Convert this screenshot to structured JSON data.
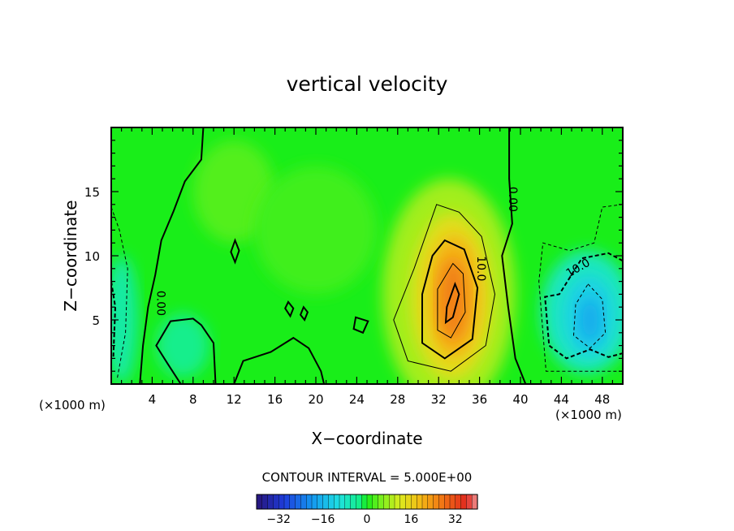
{
  "chart_data": {
    "type": "heatmap",
    "title": "vertical velocity",
    "xlabel": "X−coordinate",
    "ylabel": "Z−coordinate",
    "x_unit_left": "(×1000 m)",
    "x_unit_right": "(×1000 m)",
    "xlim": [
      0,
      50
    ],
    "ylim": [
      0,
      20
    ],
    "x_ticks": [
      4,
      8,
      12,
      16,
      20,
      24,
      28,
      32,
      36,
      40,
      44,
      48
    ],
    "x_tick_labels": [
      "4",
      "8",
      "12",
      "16",
      "20",
      "24",
      "28",
      "32",
      "36",
      "40",
      "44",
      "48"
    ],
    "y_ticks": [
      5,
      10,
      15
    ],
    "y_tick_labels": [
      "5",
      "10",
      "15"
    ],
    "contour_interval_text": "CONTOUR INTERVAL = 5.000E+00",
    "contour_interval": 5,
    "contour_labels": [
      {
        "text": "0.00",
        "x": 4.5,
        "y": 6.3,
        "rotate": 90
      },
      {
        "text": "0.00",
        "x": 38.9,
        "y": 14.4,
        "rotate": 90
      },
      {
        "text": "10.0",
        "x": 35.8,
        "y": 9.0,
        "rotate": 90
      },
      {
        "text": "10.0",
        "x": 45.8,
        "y": 8.8,
        "rotate": -30
      }
    ],
    "features": [
      {
        "kind": "updraft",
        "x": 33.3,
        "y": 6.8,
        "peak": 30
      },
      {
        "kind": "downdraft",
        "x": 46.5,
        "y": 5.5,
        "peak": -22
      },
      {
        "kind": "weak-downdraft",
        "x": 1.0,
        "y": 4.0,
        "peak": -6
      }
    ],
    "colorbar": {
      "range": [
        -40,
        40
      ],
      "ticks": [
        -32,
        -16,
        0,
        16,
        32
      ],
      "tick_labels": [
        "−32",
        "−16",
        "0",
        "16",
        "32"
      ]
    }
  }
}
